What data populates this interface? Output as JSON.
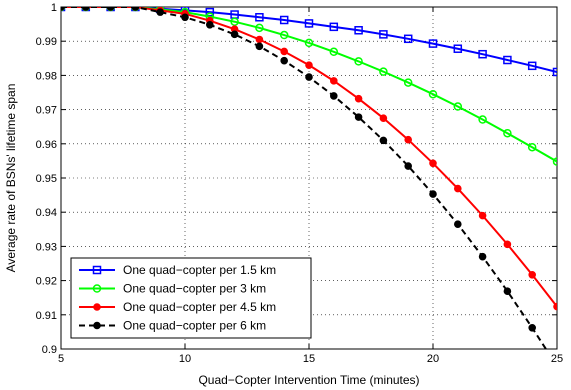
{
  "chart_data": {
    "type": "line",
    "xlabel": "Quad−Copter Intervention Time (minutes)",
    "ylabel": "Average rate of BSNs' lifetime span",
    "xlim": [
      5,
      25
    ],
    "ylim": [
      0.9,
      1.0
    ],
    "xticks": [
      "5",
      "10",
      "15",
      "20",
      "25"
    ],
    "yticks": [
      "0.9",
      "0.91",
      "0.92",
      "0.93",
      "0.94",
      "0.95",
      "0.96",
      "0.97",
      "0.98",
      "0.99",
      "1"
    ],
    "grid": true,
    "legend_position": "bottom-left",
    "x": [
      5,
      6,
      7,
      8,
      9,
      10,
      11,
      12,
      13,
      14,
      15,
      16,
      17,
      18,
      19,
      20,
      21,
      22,
      23,
      24,
      25
    ],
    "series": [
      {
        "name": "One quad−copter per 1.5 km",
        "color": "#0000ff",
        "line_style": "solid",
        "marker": "square",
        "values": [
          1.0,
          1.0,
          1.0,
          1.0,
          0.9995,
          0.999,
          0.9985,
          0.9978,
          0.997,
          0.9962,
          0.9952,
          0.9942,
          0.9932,
          0.992,
          0.9907,
          0.9893,
          0.9878,
          0.9862,
          0.9845,
          0.9828,
          0.981
        ]
      },
      {
        "name": "One quad−copter per 3 km",
        "color": "#00ff00",
        "line_style": "solid",
        "marker": "circle-open",
        "values": [
          1.0,
          1.0,
          1.0,
          1.0,
          0.9993,
          0.9985,
          0.9972,
          0.9957,
          0.9939,
          0.9918,
          0.9895,
          0.9869,
          0.9841,
          0.9811,
          0.9779,
          0.9745,
          0.9709,
          0.9671,
          0.9631,
          0.959,
          0.9548
        ]
      },
      {
        "name": "One quad−copter per 4.5 km",
        "color": "#ff0000",
        "line_style": "solid",
        "marker": "circle-filled",
        "values": [
          1.0,
          1.0,
          1.0,
          1.0,
          0.999,
          0.998,
          0.996,
          0.9935,
          0.9905,
          0.987,
          0.983,
          0.9784,
          0.9732,
          0.9675,
          0.9612,
          0.9543,
          0.9469,
          0.939,
          0.9306,
          0.9217,
          0.9124
        ]
      },
      {
        "name": "One quad−copter per 6 km",
        "color": "#000000",
        "line_style": "dashed",
        "marker": "circle-filled",
        "values": [
          1.0,
          1.0,
          1.0,
          1.0,
          0.9985,
          0.997,
          0.9948,
          0.992,
          0.9885,
          0.9843,
          0.9795,
          0.974,
          0.9678,
          0.961,
          0.9535,
          0.9453,
          0.9365,
          0.927,
          0.9169,
          0.9062,
          0.895
        ]
      }
    ]
  }
}
